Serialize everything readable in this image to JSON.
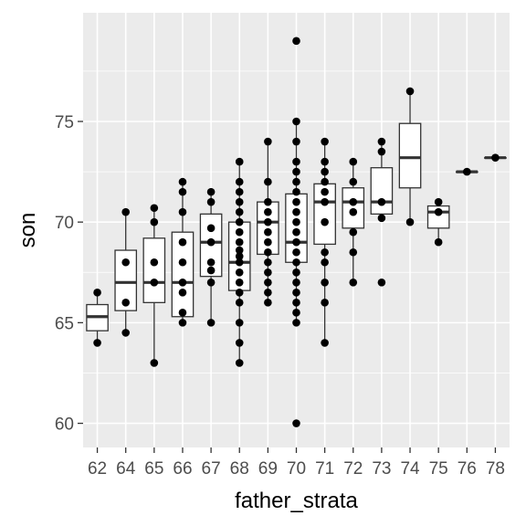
{
  "chart_data": {
    "type": "boxplot",
    "xlabel": "father_strata",
    "ylabel": "son",
    "categories": [
      "62",
      "64",
      "65",
      "66",
      "67",
      "68",
      "69",
      "70",
      "71",
      "72",
      "73",
      "74",
      "75",
      "76",
      "78"
    ],
    "ylim": [
      58.8,
      80.4
    ],
    "yticks": [
      60,
      65,
      70,
      75
    ],
    "grid": true,
    "legend": "none",
    "boxes": [
      {
        "cat": "62",
        "lower": 64.0,
        "q1": 64.6,
        "median": 65.3,
        "q3": 65.9,
        "upper": 66.5,
        "points": [
          64.0,
          66.5
        ]
      },
      {
        "cat": "64",
        "lower": 64.5,
        "q1": 65.6,
        "median": 67.0,
        "q3": 68.6,
        "upper": 70.5,
        "points": [
          64.5,
          66.0,
          68.0,
          70.5
        ]
      },
      {
        "cat": "65",
        "lower": 63.0,
        "q1": 66.0,
        "median": 67.0,
        "q3": 69.2,
        "upper": 70.7,
        "points": [
          63.0,
          67.0,
          68.0,
          70.0,
          70.7
        ]
      },
      {
        "cat": "66",
        "lower": 65.0,
        "q1": 65.3,
        "median": 67.0,
        "q3": 69.5,
        "upper": 72.0,
        "points": [
          65.0,
          65.5,
          66.5,
          67.0,
          68.0,
          69.0,
          70.5,
          71.5,
          72.0
        ]
      },
      {
        "cat": "67",
        "lower": 65.0,
        "q1": 67.3,
        "median": 69.0,
        "q3": 70.4,
        "upper": 71.5,
        "points": [
          65.0,
          67.0,
          67.6,
          68.0,
          69.0,
          69.7,
          71.0,
          71.5
        ]
      },
      {
        "cat": "68",
        "lower": 63.0,
        "q1": 66.6,
        "median": 68.0,
        "q3": 70.0,
        "upper": 73.0,
        "points": [
          63.0,
          64.0,
          65.0,
          66.0,
          66.5,
          67.0,
          67.5,
          68.0,
          68.3,
          68.6,
          69.0,
          69.5,
          70.0,
          70.5,
          71.0,
          71.5,
          72.0,
          73.0
        ]
      },
      {
        "cat": "69",
        "lower": 66.0,
        "q1": 68.4,
        "median": 70.0,
        "q3": 71.0,
        "upper": 74.0,
        "points": [
          66.0,
          66.5,
          67.0,
          67.5,
          68.0,
          68.5,
          69.0,
          69.5,
          70.0,
          70.5,
          71.0,
          72.0,
          74.0
        ]
      },
      {
        "cat": "70",
        "lower": 65.0,
        "q1": 68.0,
        "median": 69.0,
        "q3": 71.4,
        "upper": 75.0,
        "points": [
          60.0,
          65.0,
          65.5,
          66.0,
          66.5,
          67.0,
          67.5,
          68.0,
          68.5,
          69.0,
          69.5,
          70.0,
          70.5,
          71.0,
          71.5,
          72.0,
          72.5,
          73.0,
          74.0,
          75.0,
          79.0
        ]
      },
      {
        "cat": "71",
        "lower": 64.0,
        "q1": 68.9,
        "median": 71.0,
        "q3": 71.9,
        "upper": 74.0,
        "points": [
          64.0,
          66.0,
          67.0,
          68.0,
          68.5,
          70.0,
          71.0,
          71.5,
          72.0,
          72.5,
          73.0,
          74.0
        ]
      },
      {
        "cat": "72",
        "lower": 67.0,
        "q1": 69.7,
        "median": 71.0,
        "q3": 71.7,
        "upper": 73.0,
        "points": [
          67.0,
          68.5,
          69.5,
          70.5,
          71.0,
          72.0,
          73.0
        ]
      },
      {
        "cat": "73",
        "lower": 70.2,
        "q1": 70.4,
        "median": 71.0,
        "q3": 72.7,
        "upper": 74.0,
        "points": [
          67.0,
          70.2,
          71.0,
          73.5,
          74.0
        ]
      },
      {
        "cat": "74",
        "lower": 70.0,
        "q1": 71.7,
        "median": 73.2,
        "q3": 74.9,
        "upper": 76.5,
        "points": [
          70.0,
          76.5
        ]
      },
      {
        "cat": "75",
        "lower": 69.0,
        "q1": 69.7,
        "median": 70.5,
        "q3": 70.8,
        "upper": 71.0,
        "points": [
          69.0,
          70.5,
          71.0
        ]
      },
      {
        "cat": "76",
        "lower": 72.5,
        "q1": 72.5,
        "median": 72.5,
        "q3": 72.5,
        "upper": 72.5,
        "points": [
          72.5
        ]
      },
      {
        "cat": "78",
        "lower": 73.2,
        "q1": 73.2,
        "median": 73.2,
        "q3": 73.2,
        "upper": 73.2,
        "points": [
          73.2
        ]
      }
    ]
  },
  "colors": {
    "panel_bg": "#ebebeb",
    "grid_major": "#ffffff",
    "box_fill": "#ffffff",
    "box_stroke": "#333333",
    "median": "#333333",
    "points": "#000000"
  }
}
